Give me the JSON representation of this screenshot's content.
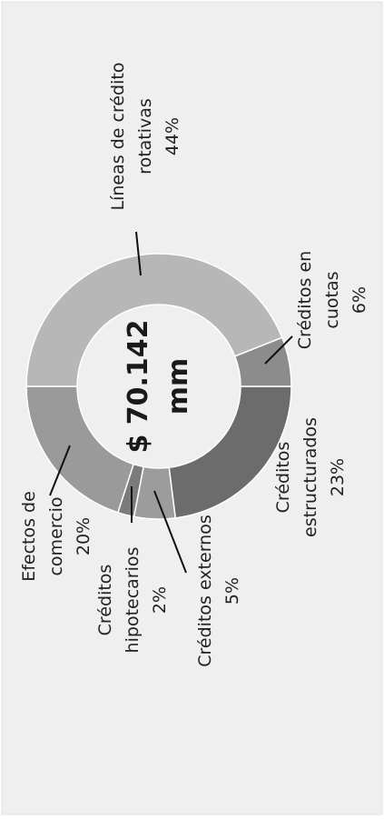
{
  "chart_data": {
    "type": "donut",
    "center_label": [
      "$ 70.142",
      "mm"
    ],
    "categories": [
      [
        "Líneas de crédito",
        "rotativas"
      ],
      [
        "Créditos en",
        "cuotas"
      ],
      [
        "Créditos",
        "estructurados"
      ],
      [
        "Créditos externos"
      ],
      [
        "Créditos",
        "hipotecarios"
      ],
      [
        "Efectos de",
        "comercio"
      ]
    ],
    "values": [
      44,
      6,
      23,
      5,
      2,
      20
    ],
    "value_labels": [
      "44%",
      "6%",
      "23%",
      "5%",
      "2%",
      "20%"
    ],
    "colors": [
      "#b7b7b7",
      "#8c8c8c",
      "#6c6c6c",
      "#9c9c9c",
      "#7b7b7b",
      "#9a9a9a"
    ]
  }
}
